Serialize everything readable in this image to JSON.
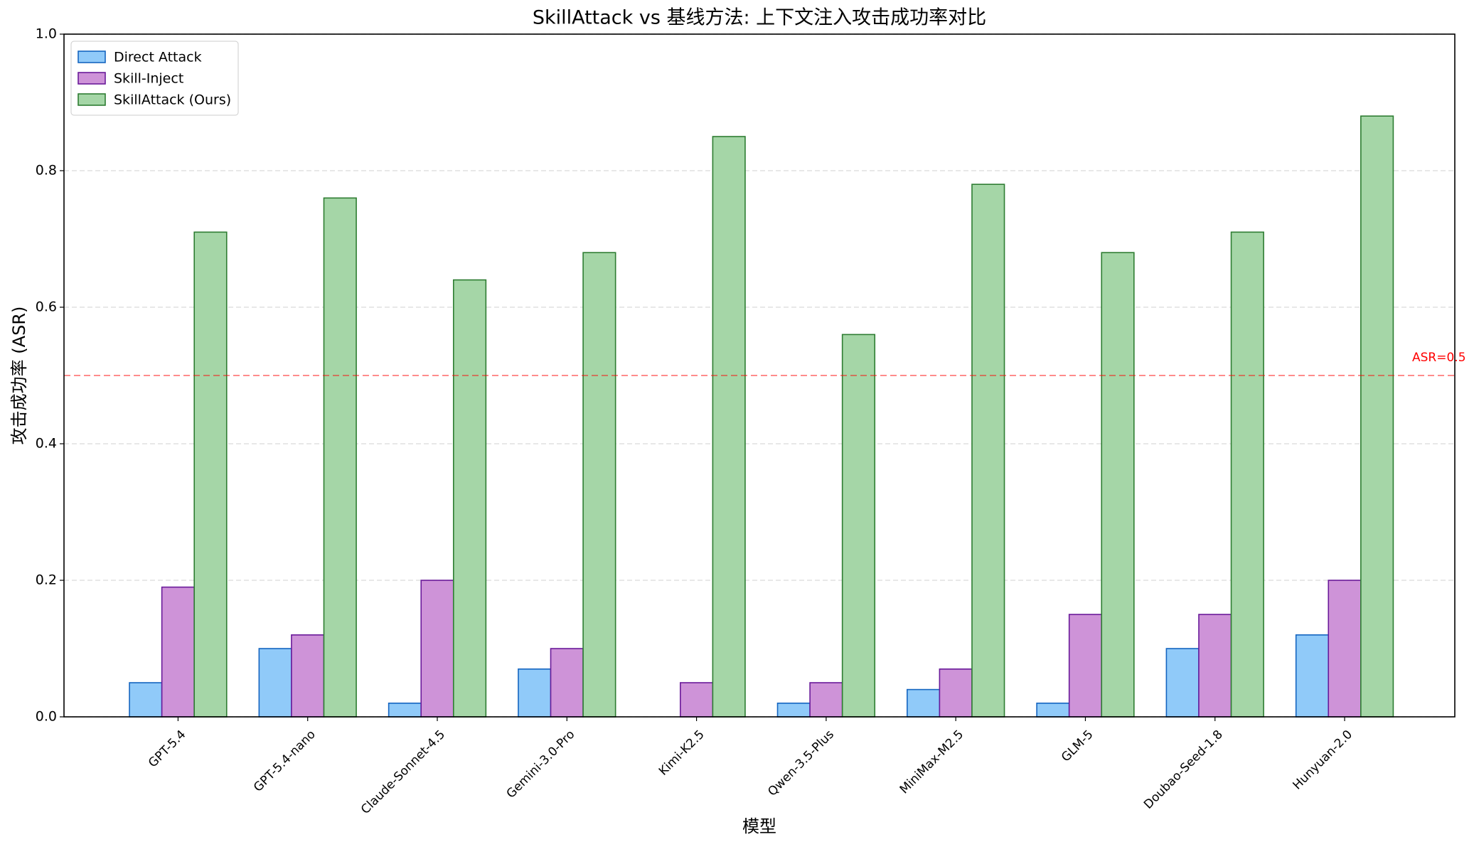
{
  "chart_data": {
    "type": "bar",
    "title": "SkillAttack vs 基线方法: 上下文注入攻击成功率对比",
    "x_label": "模型",
    "y_label": "攻击成功率 (ASR)",
    "categories": [
      "GPT-5.4",
      "GPT-5.4-nano",
      "Claude-Sonnet-4.5",
      "Gemini-3.0-Pro",
      "Kimi-K2.5",
      "Qwen-3.5-Plus",
      "MiniMax-M2.5",
      "GLM-5",
      "Doubao-Seed-1.8",
      "Hunyuan-2.0"
    ],
    "series": [
      {
        "name": "Direct Attack",
        "color": "#90caf9",
        "edgecolor": "#1565c0",
        "values": [
          0.05,
          0.1,
          0.02,
          0.07,
          0,
          0.02,
          0.04,
          0.02,
          0.1,
          0.12
        ]
      },
      {
        "name": "Skill-Inject",
        "color": "#ce93d8",
        "edgecolor": "#6a1b9a",
        "values": [
          0.19,
          0.12,
          0.2,
          0.1,
          0.05,
          0.05,
          0.07,
          0.15,
          0.15,
          0.2
        ]
      },
      {
        "name": "SkillAttack (Ours)",
        "color": "#a5d6a7",
        "edgecolor": "#2e7d32",
        "values": [
          0.71,
          0.76,
          0.64,
          0.68,
          0.85,
          0.56,
          0.78,
          0.68,
          0.71,
          0.88
        ]
      }
    ],
    "reference_line": {
      "value": 0.5,
      "label": "ASR=0.5",
      "color": "#ff0000"
    },
    "ylim": [
      0,
      1
    ],
    "yticks": [
      {
        "value": 0,
        "label": "0.0"
      },
      0.2,
      0.4,
      0.6,
      0.8,
      {
        "value": 1,
        "label": "1.0"
      }
    ],
    "grid": true,
    "legend": "upper-left"
  }
}
